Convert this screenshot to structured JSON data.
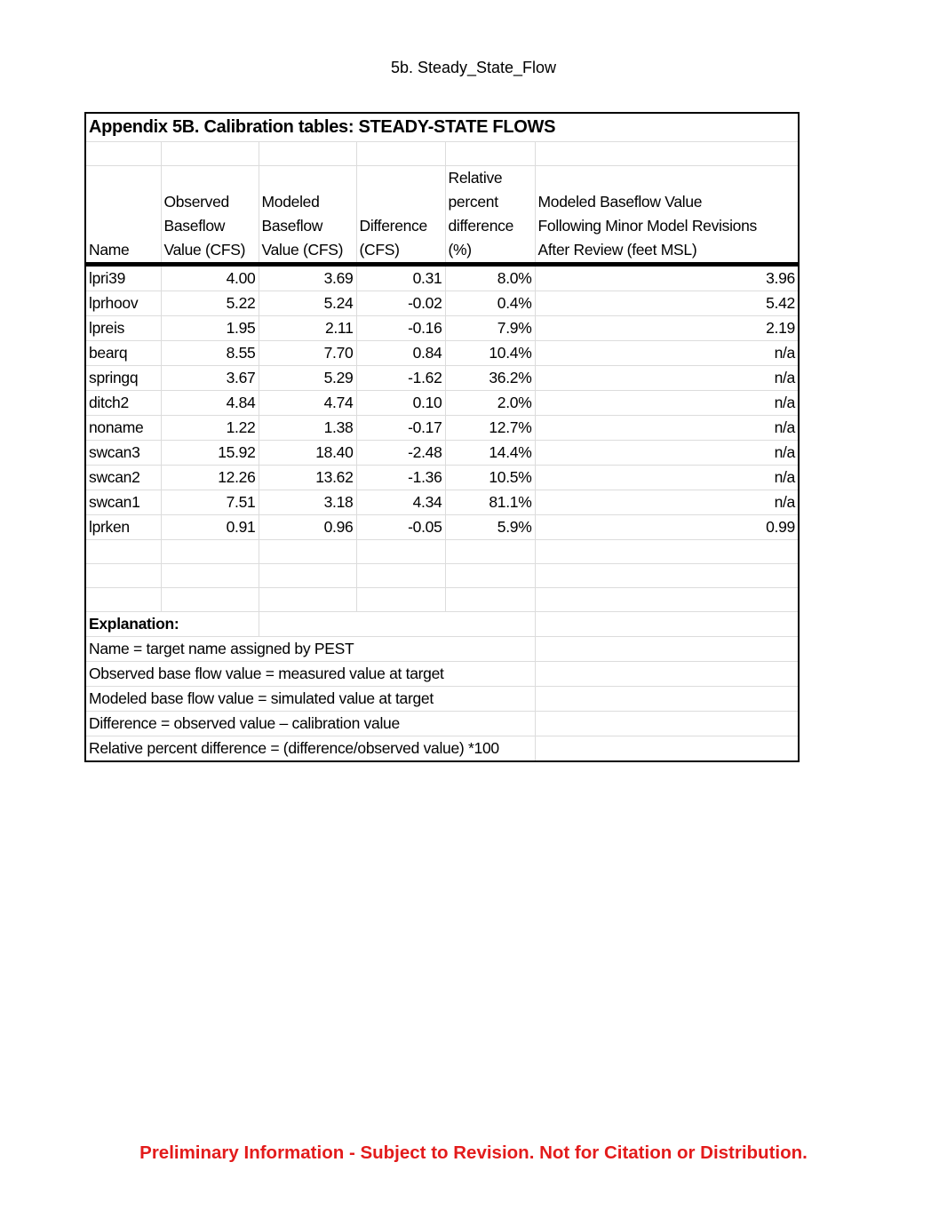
{
  "page_header": "5b. Steady_State_Flow",
  "table": {
    "title": "Appendix 5B. Calibration tables: STEADY-STATE FLOWS",
    "headers": [
      [
        "Name"
      ],
      [
        "Observed",
        "Baseflow",
        "Value (CFS)"
      ],
      [
        "Modeled",
        "Baseflow",
        "Value (CFS)"
      ],
      [
        "Difference",
        "(CFS)"
      ],
      [
        "Relative",
        "percent",
        "difference",
        "(%)"
      ],
      [
        "Modeled Baseflow Value",
        "Following Minor Model Revisions",
        "After Review (feet MSL)"
      ]
    ],
    "rows": [
      [
        "lpri39",
        "4.00",
        "3.69",
        "0.31",
        "8.0%",
        "3.96"
      ],
      [
        "lprhoov",
        "5.22",
        "5.24",
        "-0.02",
        "0.4%",
        "5.42"
      ],
      [
        "lpreis",
        "1.95",
        "2.11",
        "-0.16",
        "7.9%",
        "2.19"
      ],
      [
        "bearq",
        "8.55",
        "7.70",
        "0.84",
        "10.4%",
        "n/a"
      ],
      [
        "springq",
        "3.67",
        "5.29",
        "-1.62",
        "36.2%",
        "n/a"
      ],
      [
        "ditch2",
        "4.84",
        "4.74",
        "0.10",
        "2.0%",
        "n/a"
      ],
      [
        "noname",
        "1.22",
        "1.38",
        "-0.17",
        "12.7%",
        "n/a"
      ],
      [
        "swcan3",
        "15.92",
        "18.40",
        "-2.48",
        "14.4%",
        "n/a"
      ],
      [
        "swcan2",
        "12.26",
        "13.62",
        "-1.36",
        "10.5%",
        "n/a"
      ],
      [
        "swcan1",
        "7.51",
        "3.18",
        "4.34",
        "81.1%",
        "n/a"
      ],
      [
        "lprken",
        "0.91",
        "0.96",
        "-0.05",
        "5.9%",
        "0.99"
      ]
    ],
    "explanation_title": "Explanation:",
    "explanation": [
      "Name = target name assigned by PEST",
      "Observed base flow value = measured value at target",
      "Modeled base flow value = simulated value at target",
      "Difference = observed value – calibration value",
      "Relative percent difference = (difference/observed value) *100"
    ]
  },
  "footer": "Preliminary Information - Subject to Revision. Not for Citation or Distribution.",
  "colors": {
    "footer": "#e31b1b"
  }
}
